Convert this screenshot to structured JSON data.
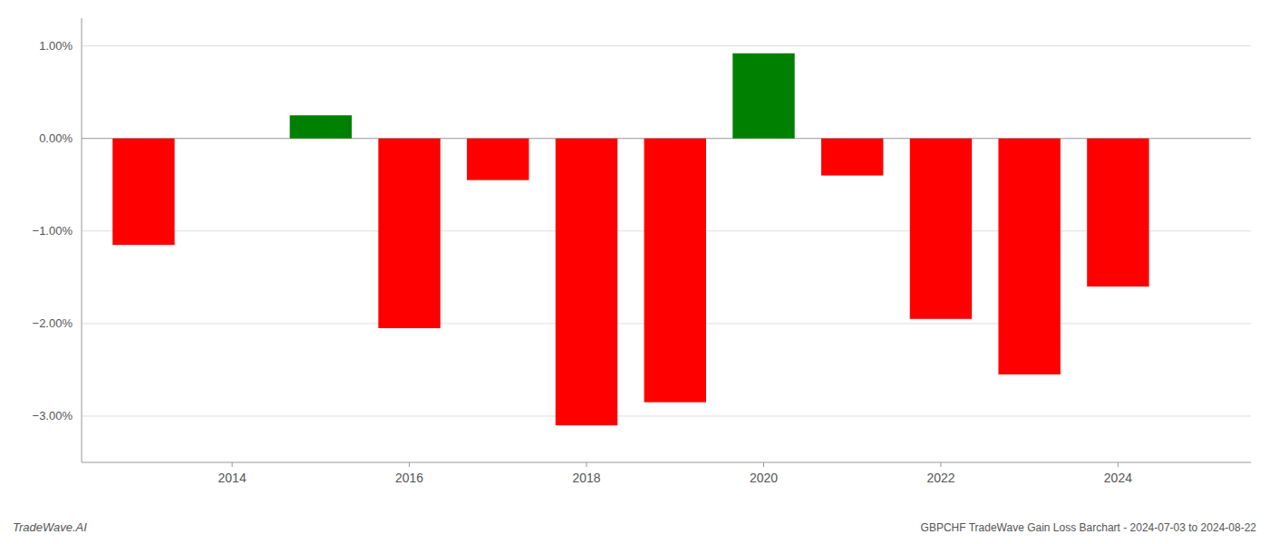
{
  "chart_data": {
    "type": "bar",
    "x": [
      2013,
      2015,
      2016,
      2017,
      2018,
      2019,
      2020,
      2021,
      2022,
      2023,
      2024
    ],
    "values": [
      -1.15,
      0.25,
      -2.05,
      -0.45,
      -3.1,
      -2.85,
      0.92,
      -0.4,
      -1.95,
      -2.55,
      -1.6
    ],
    "colors": [
      "#ff0000",
      "#008000",
      "#ff0000",
      "#ff0000",
      "#ff0000",
      "#ff0000",
      "#008000",
      "#ff0000",
      "#ff0000",
      "#ff0000",
      "#ff0000"
    ],
    "ylim": [
      -3.5,
      1.3
    ],
    "yticks": [
      {
        "value": 1.0,
        "label": "1.00%"
      },
      {
        "value": 0.0,
        "label": "0.00%"
      },
      {
        "value": -1.0,
        "label": "−1.00%"
      },
      {
        "value": -2.0,
        "label": "−2.00%"
      },
      {
        "value": -3.0,
        "label": "−3.00%"
      }
    ],
    "xlim": [
      2012.3,
      2025.5
    ],
    "xticks": [
      2014,
      2016,
      2018,
      2020,
      2022,
      2024
    ],
    "grid": true,
    "annotations": [
      "TradeWave.AI",
      "GBPCHF TradeWave Gain Loss Barchart - 2024-07-03 to 2024-08-22"
    ]
  }
}
